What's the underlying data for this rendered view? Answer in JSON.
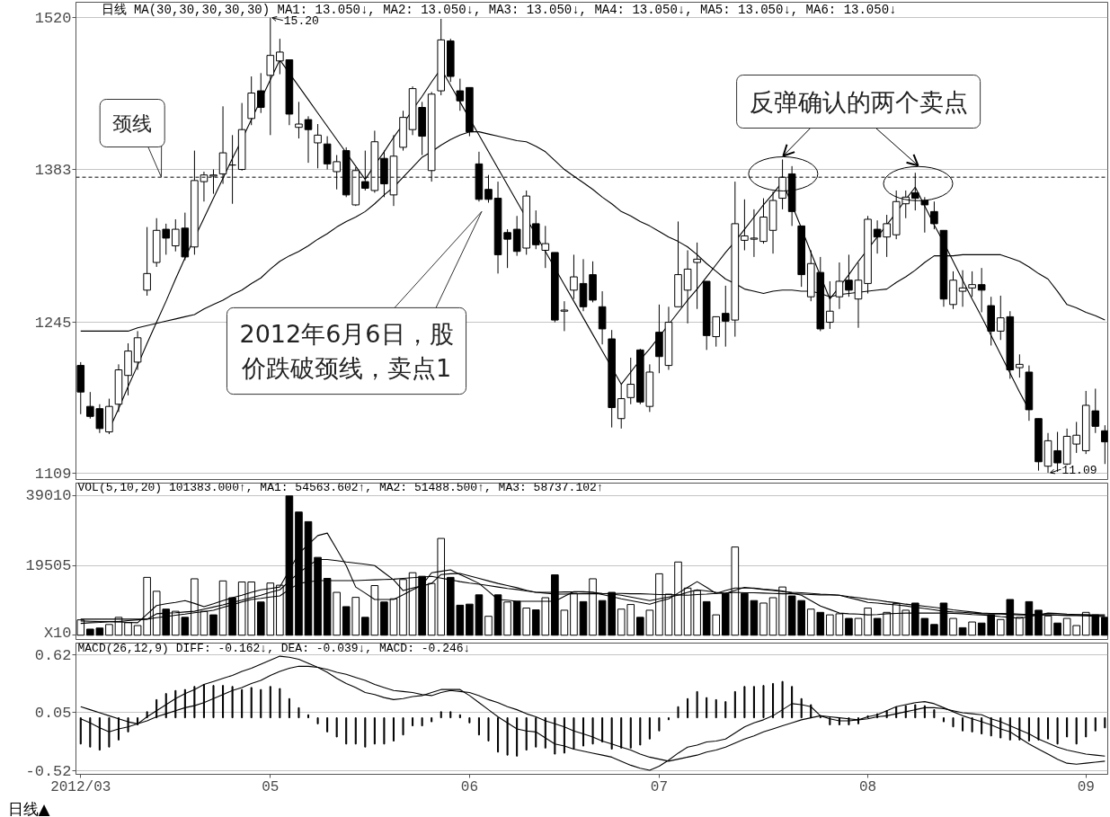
{
  "chart_data": [
    {
      "type": "candlestick",
      "title": "日线 MA(30,30,30,30,30) MA1: 13.050↓, MA2: 13.050↓, MA3: 13.050↓, MA4: 13.050↓, MA5: 13.050↓, MA6: 13.050↓",
      "categories": [
        "2012/03",
        null,
        null,
        null,
        null,
        null,
        null,
        null,
        null,
        null,
        null,
        null,
        null,
        null,
        null,
        null,
        null,
        null,
        null,
        null,
        "05",
        null,
        null,
        null,
        null,
        null,
        null,
        null,
        null,
        null,
        null,
        null,
        null,
        null,
        null,
        null,
        null,
        null,
        null,
        null,
        null,
        "06",
        null,
        null,
        null,
        null,
        null,
        null,
        null,
        null,
        null,
        null,
        null,
        null,
        null,
        null,
        null,
        null,
        null,
        null,
        null,
        "07",
        null,
        null,
        null,
        null,
        null,
        null,
        null,
        null,
        null,
        null,
        null,
        null,
        null,
        null,
        null,
        null,
        null,
        null,
        null,
        null,
        null,
        "08",
        null,
        null,
        null,
        null,
        null,
        null,
        null,
        null,
        null,
        null,
        null,
        null,
        null,
        null,
        null,
        null,
        null,
        null,
        null,
        null,
        null,
        null,
        "09",
        null,
        null
      ],
      "ohlc": [
        [
          1206,
          1209,
          1162,
          1182
        ],
        [
          1169,
          1182,
          1158,
          1160
        ],
        [
          1167,
          1171,
          1145,
          1149
        ],
        [
          1146,
          1176,
          1144,
          1169
        ],
        [
          1171,
          1207,
          1164,
          1202
        ],
        [
          1197,
          1226,
          1179,
          1219
        ],
        [
          1209,
          1237,
          1202,
          1231
        ],
        [
          1274,
          1331,
          1269,
          1289
        ],
        [
          1299,
          1339,
          1295,
          1328
        ],
        [
          1329,
          1334,
          1306,
          1321
        ],
        [
          1314,
          1338,
          1309,
          1329
        ],
        [
          1330,
          1344,
          1301,
          1304
        ],
        [
          1313,
          1400,
          1306,
          1373
        ],
        [
          1372,
          1381,
          1354,
          1378
        ],
        [
          1377,
          1383,
          1361,
          1378
        ],
        [
          1379,
          1440,
          1370,
          1398
        ],
        [
          1387,
          1414,
          1352,
          1387
        ],
        [
          1383,
          1443,
          1382,
          1419
        ],
        [
          1429,
          1467,
          1423,
          1452
        ],
        [
          1454,
          1470,
          1434,
          1439
        ],
        [
          1468,
          1520,
          1414,
          1486
        ],
        [
          1481,
          1501,
          1469,
          1489
        ],
        [
          1482,
          1482,
          1423,
          1433
        ],
        [
          1421,
          1444,
          1411,
          1424
        ],
        [
          1428,
          1431,
          1389,
          1419
        ],
        [
          1407,
          1424,
          1384,
          1414
        ],
        [
          1406,
          1413,
          1383,
          1388
        ],
        [
          1381,
          1396,
          1365,
          1390
        ],
        [
          1400,
          1403,
          1358,
          1360
        ],
        [
          1351,
          1385,
          1350,
          1382
        ],
        [
          1372,
          1400,
          1364,
          1366
        ],
        [
          1364,
          1418,
          1362,
          1408
        ],
        [
          1393,
          1400,
          1358,
          1370
        ],
        [
          1360,
          1414,
          1350,
          1395
        ],
        [
          1403,
          1436,
          1400,
          1430
        ],
        [
          1419,
          1458,
          1414,
          1456
        ],
        [
          1439,
          1444,
          1396,
          1413
        ],
        [
          1382,
          1453,
          1372,
          1451
        ],
        [
          1454,
          1519,
          1450,
          1500
        ],
        [
          1499,
          1501,
          1462,
          1467
        ],
        [
          1454,
          1465,
          1436,
          1445
        ],
        [
          1457,
          1457,
          1413,
          1417
        ],
        [
          1388,
          1399,
          1354,
          1356
        ],
        [
          1365,
          1378,
          1353,
          1356
        ],
        [
          1357,
          1372,
          1289,
          1306
        ],
        [
          1326,
          1329,
          1294,
          1320
        ],
        [
          1329,
          1341,
          1305,
          1309
        ],
        [
          1312,
          1364,
          1306,
          1359
        ],
        [
          1334,
          1346,
          1311,
          1315
        ],
        [
          1310,
          1332,
          1294,
          1316
        ],
        [
          1308,
          1308,
          1245,
          1247
        ],
        [
          1255,
          1264,
          1237,
          1256
        ],
        [
          1274,
          1306,
          1266,
          1286
        ],
        [
          1280,
          1302,
          1255,
          1259
        ],
        [
          1288,
          1300,
          1263,
          1265
        ],
        [
          1259,
          1273,
          1225,
          1239
        ],
        [
          1230,
          1238,
          1150,
          1168
        ],
        [
          1158,
          1189,
          1149,
          1176
        ],
        [
          1177,
          1213,
          1171,
          1189
        ],
        [
          1220,
          1221,
          1171,
          1173
        ],
        [
          1169,
          1207,
          1164,
          1200
        ],
        [
          1236,
          1261,
          1199,
          1214
        ],
        [
          1206,
          1259,
          1202,
          1245
        ],
        [
          1259,
          1336,
          1259,
          1288
        ],
        [
          1274,
          1310,
          1244,
          1293
        ],
        [
          1299,
          1317,
          1257,
          1302
        ],
        [
          1282,
          1282,
          1220,
          1233
        ],
        [
          1232,
          1250,
          1223,
          1250
        ],
        [
          1253,
          1278,
          1223,
          1246
        ],
        [
          1247,
          1372,
          1232,
          1334
        ],
        [
          1319,
          1356,
          1310,
          1323
        ],
        [
          1320,
          1347,
          1304,
          1321
        ],
        [
          1318,
          1357,
          1316,
          1340
        ],
        [
          1328,
          1363,
          1307,
          1355
        ],
        [
          1357,
          1392,
          1347,
          1376
        ],
        [
          1379,
          1386,
          1332,
          1345
        ],
        [
          1332,
          1332,
          1277,
          1288
        ],
        [
          1268,
          1310,
          1264,
          1298
        ],
        [
          1290,
          1304,
          1237,
          1239
        ],
        [
          1245,
          1282,
          1239,
          1255
        ],
        [
          1268,
          1299,
          1257,
          1282
        ],
        [
          1283,
          1306,
          1268,
          1274
        ],
        [
          1266,
          1299,
          1240,
          1283
        ],
        [
          1280,
          1341,
          1271,
          1338
        ],
        [
          1329,
          1337,
          1307,
          1322
        ],
        [
          1322,
          1342,
          1304,
          1334
        ],
        [
          1324,
          1364,
          1320,
          1354
        ],
        [
          1352,
          1364,
          1339,
          1358
        ],
        [
          1362,
          1380,
          1346,
          1357
        ],
        [
          1355,
          1358,
          1326,
          1351
        ],
        [
          1345,
          1354,
          1329,
          1334
        ],
        [
          1328,
          1328,
          1259,
          1266
        ],
        [
          1261,
          1291,
          1257,
          1283
        ],
        [
          1273,
          1292,
          1259,
          1276
        ],
        [
          1276,
          1291,
          1268,
          1279
        ],
        [
          1279,
          1294,
          1254,
          1274
        ],
        [
          1260,
          1268,
          1224,
          1237
        ],
        [
          1237,
          1269,
          1229,
          1249
        ],
        [
          1250,
          1255,
          1194,
          1202
        ],
        [
          1204,
          1216,
          1195,
          1207
        ],
        [
          1200,
          1206,
          1156,
          1166
        ],
        [
          1158,
          1158,
          1111,
          1119
        ],
        [
          1115,
          1145,
          1109,
          1138
        ],
        [
          1129,
          1146,
          1110,
          1118
        ],
        [
          1117,
          1149,
          1116,
          1142
        ],
        [
          1135,
          1155,
          1127,
          1143
        ],
        [
          1129,
          1183,
          1126,
          1170
        ],
        [
          1165,
          1185,
          1145,
          1151
        ],
        [
          1147,
          1152,
          1117,
          1137
        ]
      ],
      "color": "#000000",
      "series": [
        {
          "type": "line",
          "color": "#000000",
          "values": [
            1237,
            1237,
            1237,
            1237,
            1237,
            1237,
            1240,
            1242,
            1244,
            1246,
            1248,
            1250,
            1252,
            1257,
            1261,
            1265,
            1270,
            1274,
            1280,
            1285,
            1293,
            1300,
            1305,
            1309,
            1314,
            1320,
            1325,
            1331,
            1336,
            1340,
            1345,
            1352,
            1360,
            1367,
            1376,
            1385,
            1394,
            1399,
            1405,
            1410,
            1414,
            1417,
            1417,
            1415,
            1413,
            1411,
            1409,
            1408,
            1404,
            1399,
            1391,
            1383,
            1377,
            1371,
            1365,
            1358,
            1352,
            1345,
            1341,
            1336,
            1332,
            1327,
            1322,
            1318,
            1313,
            1306,
            1298,
            1291,
            1284,
            1280,
            1275,
            1273,
            1271,
            1273,
            1274,
            1274,
            1273,
            1273,
            1271,
            1268,
            1270,
            1271,
            1272,
            1273,
            1274,
            1275,
            1281,
            1286,
            1292,
            1299,
            1305,
            1305,
            1305,
            1306,
            1306,
            1306,
            1306,
            1306,
            1303,
            1300,
            1295,
            1289,
            1284,
            1273,
            1261,
            1258,
            1254,
            1251,
            1247
          ]
        },
        {
          "type": "line",
          "color": "#000000",
          "values": [
            null,
            null,
            null,
            1148,
            1167,
            1187,
            1206,
            1226,
            1245,
            1264,
            1284,
            1303,
            1321,
            1339,
            1357,
            1375,
            1393,
            1410,
            1428,
            1446,
            1464,
            1482,
            1470,
            1458,
            1446,
            1434,
            1422,
            1410,
            1398,
            1386,
            1374,
            1387,
            1399,
            1412,
            1424,
            1437,
            1449,
            1462,
            1474,
            1459,
            1444,
            1429,
            1414,
            1399,
            1384,
            1369,
            1354,
            1339,
            1324,
            1309,
            1294,
            1279,
            1264,
            1249,
            1234,
            1219,
            1204,
            1189,
            1200,
            1211,
            1221,
            1232,
            1243,
            1254,
            1265,
            1275,
            1286,
            1297,
            1308,
            1318,
            1329,
            1340,
            1351,
            1361,
            1372,
            1351,
            1330,
            1308,
            1287,
            1266,
            1277,
            1288,
            1300,
            1311,
            1322,
            1333,
            1344,
            1356,
            1367,
            1350,
            1333,
            1317,
            1300,
            1283,
            1266,
            1250,
            1233,
            1216,
            1199,
            1182,
            1166,
            null,
            null,
            null,
            null,
            null,
            null,
            null,
            null
          ]
        }
      ],
      "ylim": [
        1103,
        1534
      ],
      "yticks": [
        1109,
        1245,
        1383,
        1520
      ],
      "grid": "y",
      "tick_labels": "y",
      "ref_lines": [
        {
          "axis": "y",
          "value": 1376,
          "label": "颈线",
          "line_style": "dashed",
          "color": "#000000"
        }
      ],
      "annotations": [
        {
          "text": "15.20",
          "x": "05",
          "y": 1520
        },
        "11.09",
        "2012年6月6日，股价跌破颈线，卖点1",
        {
          "text": "反弹确认的两个卖点",
          "y": 1379
        }
      ]
    },
    {
      "type": "bar",
      "title": "VOL(5,10,20) 101383.000↑, MA1: 54563.602↑, MA2: 51488.500↑, MA3: 58737.102↑",
      "categories": [
        "2012/03",
        null,
        null,
        null,
        null,
        null,
        null,
        null,
        null,
        null,
        null,
        null,
        null,
        null,
        null,
        null,
        null,
        null,
        null,
        null,
        "05",
        null,
        null,
        null,
        null,
        null,
        null,
        null,
        null,
        null,
        null,
        null,
        null,
        null,
        null,
        null,
        null,
        null,
        null,
        null,
        null,
        "06",
        null,
        null,
        null,
        null,
        null,
        null,
        null,
        null,
        null,
        null,
        null,
        null,
        null,
        null,
        null,
        null,
        null,
        null,
        null,
        "07",
        null,
        null,
        null,
        null,
        null,
        null,
        null,
        null,
        null,
        null,
        null,
        null,
        null,
        null,
        null,
        null,
        null,
        null,
        null,
        null,
        null,
        "08",
        null,
        null,
        null,
        null,
        null,
        null,
        null,
        null,
        null,
        null,
        null,
        null,
        null,
        null,
        null,
        null,
        null,
        null,
        null,
        null,
        null,
        null,
        "09",
        null,
        null
      ],
      "series": [
        {
          "type": "bar",
          "colors": [
            "#ffffff",
            "#000000",
            "#000000",
            "#ffffff",
            "#ffffff",
            "#ffffff",
            "#ffffff",
            "#ffffff",
            "#ffffff",
            "#000000",
            "#ffffff",
            "#000000",
            "#ffffff",
            "#ffffff",
            "#000000",
            "#ffffff",
            "#000000",
            "#ffffff",
            "#ffffff",
            "#000000",
            "#ffffff",
            "#ffffff",
            "#000000",
            "#000000",
            "#000000",
            "#000000",
            "#000000",
            "#ffffff",
            "#000000",
            "#ffffff",
            "#000000",
            "#ffffff",
            "#000000",
            "#ffffff",
            "#ffffff",
            "#ffffff",
            "#000000",
            "#ffffff",
            "#ffffff",
            "#000000",
            "#000000",
            "#000000",
            "#000000",
            "#ffffff",
            "#000000",
            "#ffffff",
            "#000000",
            "#ffffff",
            "#000000",
            "#ffffff",
            "#000000",
            "#ffffff",
            "#ffffff",
            "#000000",
            "#ffffff",
            "#000000",
            "#000000",
            "#ffffff",
            "#ffffff",
            "#000000",
            "#ffffff",
            "#ffffff",
            "#ffffff",
            "#ffffff",
            "#ffffff",
            "#ffffff",
            "#000000",
            "#ffffff",
            "#000000",
            "#ffffff",
            "#000000",
            "#000000",
            "#ffffff",
            "#ffffff",
            "#ffffff",
            "#000000",
            "#000000",
            "#ffffff",
            "#000000",
            "#ffffff",
            "#ffffff",
            "#000000",
            "#ffffff",
            "#ffffff",
            "#000000",
            "#ffffff",
            "#ffffff",
            "#ffffff",
            "#000000",
            "#000000",
            "#000000",
            "#000000",
            "#ffffff",
            "#000000",
            "#ffffff",
            "#000000",
            "#000000",
            "#ffffff",
            "#000000",
            "#ffffff",
            "#000000",
            "#000000",
            "#ffffff",
            "#000000",
            "#ffffff",
            "#ffffff",
            "#ffffff",
            "#000000",
            "#000000"
          ],
          "values": [
            4300,
            1700,
            2000,
            3000,
            5000,
            3500,
            2700,
            16200,
            12300,
            7300,
            6700,
            5000,
            15800,
            6700,
            5700,
            15200,
            10500,
            14900,
            14900,
            9300,
            14600,
            14000,
            39000,
            34500,
            31800,
            21800,
            15900,
            12000,
            8000,
            10600,
            5000,
            13900,
            9300,
            10200,
            15600,
            17500,
            16500,
            14500,
            27100,
            16200,
            8400,
            8700,
            11300,
            5300,
            11300,
            9300,
            9500,
            7600,
            7100,
            10500,
            16900,
            7000,
            11700,
            9400,
            15800,
            9700,
            12000,
            7300,
            8600,
            5000,
            7000,
            17200,
            11500,
            20500,
            13200,
            12500,
            9400,
            5700,
            11700,
            24700,
            11700,
            9700,
            9000,
            10500,
            13500,
            11000,
            9700,
            7300,
            6400,
            5700,
            6000,
            4700,
            4700,
            7600,
            4700,
            6400,
            8900,
            7000,
            9000,
            4700,
            3000,
            9000,
            4700,
            2100,
            3700,
            3400,
            5700,
            4400,
            10000,
            5000,
            9400,
            7000,
            5400,
            3400,
            4700,
            2700,
            6400,
            5700,
            5000
          ]
        },
        {
          "type": "line",
          "color": "#000000",
          "values": [
            4000,
            3900,
            3800,
            3800,
            3700,
            3600,
            3500,
            5900,
            8300,
            8800,
            9200,
            9700,
            8900,
            8000,
            8800,
            9700,
            10500,
            11200,
            12000,
            12700,
            13100,
            13500,
            18200,
            22900,
            25400,
            27900,
            28600,
            24100,
            19500,
            13500,
            11800,
            10000,
            10000,
            10000,
            11300,
            12700,
            14000,
            17500,
            17900,
            18300,
            17000,
            15800,
            14500,
            12300,
            10000,
            9800,
            9500,
            9500,
            9500,
            9500,
            9500,
            10900,
            12200,
            12100,
            12000,
            11400,
            10800,
            10200,
            9700,
            9200,
            8700,
            9500,
            10200,
            11800,
            13400,
            15000,
            13400,
            11700,
            12500,
            13200,
            13200,
            13200,
            12900,
            12700,
            12400,
            11800,
            11200,
            9700,
            8200,
            7200,
            6200,
            6000,
            5900,
            5700,
            5800,
            6000,
            6100,
            6200,
            6200,
            6200,
            6200,
            6200,
            6100,
            6000,
            5800,
            5700,
            5500,
            5200,
            5000,
            4700,
            5200,
            5700,
            6200,
            6100,
            5900,
            5800,
            5700,
            5500,
            5400
          ]
        },
        {
          "type": "line",
          "color": "#000000",
          "values": [
            3300,
            3500,
            3600,
            3800,
            3800,
            4100,
            4300,
            4500,
            6000,
            6200,
            6300,
            6500,
            6700,
            7300,
            7900,
            8500,
            9200,
            9800,
            10500,
            11200,
            12000,
            12700,
            15100,
            17500,
            19400,
            21200,
            21200,
            20900,
            20500,
            20200,
            19900,
            19500,
            17500,
            15500,
            12500,
            13200,
            13800,
            14500,
            17000,
            17200,
            17300,
            16600,
            15900,
            15200,
            14500,
            13900,
            13300,
            12600,
            12000,
            12000,
            12000,
            12100,
            12100,
            12200,
            12000,
            11700,
            11500,
            11200,
            10700,
            10200,
            9700,
            10200,
            10700,
            11200,
            12000,
            12700,
            12400,
            12000,
            11700,
            12600,
            13400,
            13100,
            12800,
            12500,
            12200,
            12000,
            11900,
            11700,
            11500,
            11400,
            11200,
            10500,
            9900,
            9200,
            9000,
            8700,
            8500,
            8200,
            7800,
            7500,
            7100,
            6700,
            6500,
            6400,
            6200,
            6000,
            5900,
            5900,
            5800,
            5700,
            5700,
            5700,
            5700,
            5700,
            5700,
            5700,
            5700,
            5700,
            5700
          ]
        },
        {
          "type": "line",
          "color": "#000000",
          "values": [
            4500,
            4500,
            4500,
            4500,
            4500,
            4500,
            4500,
            4500,
            4900,
            5200,
            5600,
            5900,
            6300,
            6600,
            7000,
            7800,
            8500,
            9300,
            10000,
            10300,
            10700,
            11000,
            12800,
            14500,
            14900,
            15300,
            15300,
            15300,
            15300,
            15300,
            15400,
            15500,
            15600,
            15700,
            15900,
            16100,
            16300,
            16500,
            16000,
            15500,
            15000,
            14600,
            14300,
            13900,
            13500,
            13100,
            12800,
            12400,
            12000,
            11800,
            11500,
            11500,
            11600,
            11600,
            11600,
            11600,
            11700,
            11700,
            11600,
            11600,
            11500,
            11400,
            11400,
            11300,
            11200,
            11400,
            11500,
            11700,
            11800,
            12000,
            11900,
            11900,
            11800,
            11700,
            11600,
            11600,
            11500,
            11400,
            11300,
            11300,
            11200,
            10800,
            10500,
            10100,
            9800,
            9400,
            9100,
            8700,
            8400,
            8100,
            7800,
            7500,
            7100,
            6800,
            6500,
            6200,
            6100,
            6100,
            6000,
            5900,
            5800,
            5800,
            5700,
            5600,
            5500,
            5500,
            5400,
            5300,
            5200
          ]
        }
      ],
      "ylim": [
        -1200,
        42600
      ],
      "yticks": [
        {
          "value": 0,
          "label": "X10"
        },
        19505,
        39010
      ],
      "grid": "y",
      "tick_labels": "y"
    },
    {
      "type": "bar",
      "title": "MACD(26,12,9) DIFF: -0.162↓, DEA: -0.039↓, MACD: -0.246↓",
      "categories": [
        "2012/03",
        null,
        null,
        null,
        null,
        null,
        null,
        null,
        null,
        null,
        null,
        null,
        null,
        null,
        null,
        null,
        null,
        null,
        null,
        null,
        "05",
        null,
        null,
        null,
        null,
        null,
        null,
        null,
        null,
        null,
        null,
        null,
        null,
        null,
        null,
        null,
        null,
        null,
        null,
        null,
        null,
        "06",
        null,
        null,
        null,
        null,
        null,
        null,
        null,
        null,
        null,
        null,
        null,
        null,
        null,
        null,
        null,
        null,
        null,
        null,
        null,
        "07",
        null,
        null,
        null,
        null,
        null,
        null,
        null,
        null,
        null,
        null,
        null,
        null,
        null,
        null,
        null,
        null,
        null,
        null,
        null,
        null,
        null,
        "08",
        null,
        null,
        null,
        null,
        null,
        null,
        null,
        null,
        null,
        null,
        null,
        null,
        null,
        null,
        null,
        null,
        null,
        null,
        null,
        null,
        null,
        null,
        "09",
        null,
        null
      ],
      "series": [
        {
          "type": "bar",
          "color": "#000000",
          "values": [
            -0.26,
            -0.29,
            -0.32,
            -0.29,
            -0.22,
            -0.14,
            -0.07,
            0.06,
            0.18,
            0.24,
            0.27,
            0.28,
            0.31,
            0.33,
            0.32,
            0.32,
            0.31,
            0.28,
            0.3,
            0.28,
            0.31,
            0.29,
            0.19,
            0.1,
            0.03,
            -0.06,
            -0.14,
            -0.19,
            -0.26,
            -0.26,
            -0.29,
            -0.26,
            -0.26,
            -0.23,
            -0.17,
            -0.08,
            -0.08,
            -0.04,
            0.06,
            0.06,
            0.03,
            -0.05,
            -0.17,
            -0.23,
            -0.34,
            -0.37,
            -0.38,
            -0.32,
            -0.29,
            -0.3,
            -0.36,
            -0.35,
            -0.31,
            -0.28,
            -0.26,
            -0.24,
            -0.31,
            -0.3,
            -0.3,
            -0.27,
            -0.21,
            -0.13,
            -0.02,
            0.11,
            0.19,
            0.26,
            0.2,
            0.18,
            0.16,
            0.26,
            0.31,
            0.31,
            0.32,
            0.34,
            0.36,
            0.31,
            0.19,
            0.13,
            0.01,
            -0.07,
            -0.07,
            -0.07,
            -0.06,
            0.02,
            0.04,
            0.07,
            0.11,
            0.12,
            0.13,
            0.12,
            0.08,
            -0.04,
            -0.09,
            -0.13,
            -0.14,
            -0.16,
            -0.18,
            -0.2,
            -0.22,
            -0.22,
            -0.23,
            -0.22,
            -0.21,
            -0.26,
            -0.19,
            -0.26,
            -0.19,
            -0.13,
            -0.1
          ]
        },
        {
          "type": "line",
          "color": "#000000",
          "values": [
            -0.01,
            -0.05,
            -0.1,
            -0.14,
            -0.11,
            -0.09,
            -0.06,
            0.01,
            0.07,
            0.13,
            0.19,
            0.24,
            0.28,
            0.33,
            0.36,
            0.39,
            0.42,
            0.46,
            0.49,
            0.53,
            0.57,
            0.61,
            0.6,
            0.58,
            0.54,
            0.5,
            0.45,
            0.39,
            0.34,
            0.3,
            0.25,
            0.23,
            0.2,
            0.18,
            0.19,
            0.21,
            0.22,
            0.25,
            0.28,
            0.28,
            0.28,
            0.22,
            0.15,
            0.08,
            0.01,
            -0.05,
            -0.11,
            -0.13,
            -0.14,
            -0.2,
            -0.26,
            -0.28,
            -0.31,
            -0.33,
            -0.35,
            -0.37,
            -0.39,
            -0.43,
            -0.47,
            -0.5,
            -0.52,
            -0.48,
            -0.42,
            -0.35,
            -0.29,
            -0.27,
            -0.24,
            -0.23,
            -0.21,
            -0.15,
            -0.09,
            -0.05,
            -0.02,
            0.02,
            0.08,
            0.14,
            0.13,
            0.11,
            0.02,
            -0.01,
            -0.03,
            -0.03,
            -0.02,
            0.01,
            0.03,
            0.07,
            0.11,
            0.13,
            0.15,
            0.16,
            0.14,
            0.1,
            0.06,
            0.02,
            -0.01,
            -0.04,
            -0.07,
            -0.11,
            -0.14,
            -0.2,
            -0.26,
            -0.31,
            -0.36,
            -0.41,
            -0.45,
            -0.46,
            -0.45,
            -0.44,
            -0.43
          ]
        },
        {
          "type": "line",
          "color": "#000000",
          "values": [
            0.11,
            0.08,
            0.05,
            0.02,
            -0.01,
            -0.04,
            -0.06,
            -0.03,
            0.01,
            0.04,
            0.07,
            0.1,
            0.12,
            0.15,
            0.19,
            0.23,
            0.27,
            0.3,
            0.34,
            0.37,
            0.42,
            0.46,
            0.49,
            0.51,
            0.51,
            0.5,
            0.48,
            0.45,
            0.43,
            0.4,
            0.37,
            0.33,
            0.3,
            0.27,
            0.26,
            0.25,
            0.23,
            0.22,
            0.25,
            0.27,
            0.26,
            0.25,
            0.22,
            0.18,
            0.15,
            0.11,
            0.08,
            0.04,
            0.01,
            -0.03,
            -0.06,
            -0.09,
            -0.13,
            -0.16,
            -0.19,
            -0.23,
            -0.26,
            -0.29,
            -0.32,
            -0.36,
            -0.39,
            -0.41,
            -0.43,
            -0.41,
            -0.39,
            -0.37,
            -0.34,
            -0.32,
            -0.29,
            -0.25,
            -0.21,
            -0.18,
            -0.14,
            -0.11,
            -0.08,
            -0.05,
            -0.02,
            0.0,
            0.02,
            0.01,
            0.0,
            -0.01,
            -0.02,
            -0.01,
            0.01,
            0.02,
            0.04,
            0.06,
            0.08,
            0.1,
            0.1,
            0.09,
            0.07,
            0.05,
            0.04,
            0.03,
            -0.01,
            -0.04,
            -0.08,
            -0.12,
            -0.16,
            -0.21,
            -0.25,
            -0.29,
            -0.32,
            -0.34,
            -0.36,
            -0.37,
            -0.38
          ]
        }
      ],
      "ylim": [
        -0.56,
        0.74
      ],
      "yticks": [
        -0.52,
        0.05,
        0.62
      ],
      "grid": "y",
      "annotations": [
        "日线▲"
      ]
    }
  ]
}
